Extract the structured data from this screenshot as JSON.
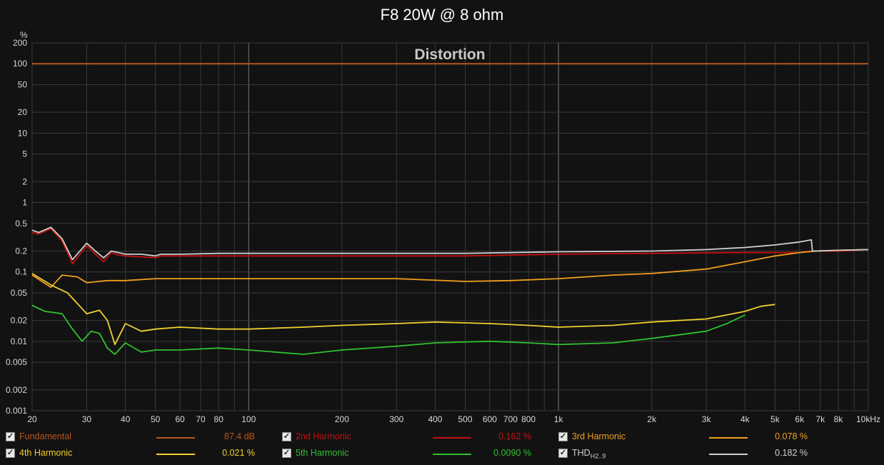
{
  "page_title": "F8 20W @ 8 ohm",
  "colors": {
    "background": "#121212",
    "grid": "#3a3a3a",
    "grid_major": "#7a7a7a",
    "axis_text": "#d8d8d8",
    "fundamental": "#b8561a",
    "h2": "#c81010",
    "h3": "#f0a020",
    "h4": "#f0d030",
    "h5": "#30c030",
    "thd": "#d0d0d0"
  },
  "chart_data": {
    "type": "line",
    "title": "Distortion",
    "ylabel": "%",
    "xscale": "log",
    "yscale": "log",
    "xlim": [
      20,
      10000
    ],
    "ylim": [
      0.001,
      200
    ],
    "x_ticks": [
      "20",
      "30",
      "40",
      "50",
      "60",
      "70",
      "80",
      "100",
      "200",
      "300",
      "400",
      "500",
      "600",
      "700",
      "800",
      "1k",
      "2k",
      "3k",
      "4k",
      "5k",
      "6k",
      "7k",
      "8k",
      "10kHz"
    ],
    "y_ticks": [
      "200",
      "100",
      "50",
      "20",
      "10",
      "5",
      "2",
      "1",
      "0.5",
      "0.2",
      "0.1",
      "0.05",
      "0.02",
      "0.01",
      "0.005",
      "0.002",
      "0.001"
    ],
    "series": [
      {
        "name": "Fundamental",
        "color": "#b8561a",
        "x": [
          20,
          10000
        ],
        "y": [
          100,
          100
        ]
      },
      {
        "name": "2nd Harmonic",
        "color": "#c81010",
        "x": [
          20,
          21,
          23,
          25,
          27,
          30,
          32,
          34,
          36,
          38,
          40,
          45,
          50,
          52,
          60,
          80,
          100,
          200,
          500,
          1000,
          2000,
          4000,
          6000,
          6500,
          8000,
          10000
        ],
        "y": [
          0.37,
          0.35,
          0.42,
          0.28,
          0.13,
          0.24,
          0.18,
          0.14,
          0.19,
          0.175,
          0.17,
          0.165,
          0.16,
          0.17,
          0.17,
          0.17,
          0.17,
          0.17,
          0.17,
          0.18,
          0.185,
          0.19,
          0.19,
          0.2,
          0.2,
          0.21
        ]
      },
      {
        "name": "3rd Harmonic",
        "color": "#f0a020",
        "x": [
          20,
          23,
          25,
          28,
          30,
          35,
          40,
          50,
          80,
          100,
          200,
          300,
          500,
          700,
          1000,
          1500,
          2000,
          3000,
          4000,
          5000,
          6000,
          6800,
          8000,
          10000
        ],
        "y": [
          0.09,
          0.06,
          0.09,
          0.085,
          0.07,
          0.075,
          0.075,
          0.08,
          0.08,
          0.08,
          0.08,
          0.08,
          0.073,
          0.075,
          0.08,
          0.09,
          0.095,
          0.11,
          0.14,
          0.17,
          0.19,
          0.2,
          0.205,
          0.21
        ]
      },
      {
        "name": "4th Harmonic",
        "color": "#f0d030",
        "x": [
          20,
          23,
          26,
          28,
          30,
          33,
          35,
          37,
          40,
          45,
          50,
          60,
          80,
          100,
          150,
          200,
          300,
          400,
          600,
          800,
          1000,
          1500,
          2000,
          3000,
          4000,
          4500,
          5000
        ],
        "y": [
          0.095,
          0.065,
          0.05,
          0.035,
          0.025,
          0.028,
          0.02,
          0.009,
          0.018,
          0.014,
          0.015,
          0.016,
          0.015,
          0.015,
          0.016,
          0.017,
          0.018,
          0.019,
          0.018,
          0.017,
          0.016,
          0.017,
          0.019,
          0.021,
          0.027,
          0.032,
          0.034
        ]
      },
      {
        "name": "5th Harmonic",
        "color": "#30c030",
        "x": [
          20,
          22,
          25,
          27,
          29,
          31,
          33,
          35,
          37,
          40,
          45,
          50,
          60,
          80,
          100,
          150,
          200,
          300,
          400,
          600,
          800,
          1000,
          1500,
          2000,
          3000,
          3500,
          4000
        ],
        "y": [
          0.033,
          0.027,
          0.025,
          0.015,
          0.01,
          0.014,
          0.013,
          0.008,
          0.0065,
          0.0095,
          0.007,
          0.0075,
          0.0075,
          0.008,
          0.0075,
          0.0065,
          0.0075,
          0.0085,
          0.0095,
          0.01,
          0.0095,
          0.009,
          0.0095,
          0.011,
          0.014,
          0.018,
          0.024
        ]
      },
      {
        "name": "THD H2..9",
        "color": "#d0d0d0",
        "x": [
          20,
          21,
          23,
          25,
          27,
          30,
          32,
          34,
          36,
          38,
          40,
          45,
          50,
          52,
          60,
          80,
          100,
          200,
          500,
          1000,
          2000,
          3000,
          4000,
          5000,
          6000,
          6550,
          6600,
          8000,
          10000
        ],
        "y": [
          0.4,
          0.37,
          0.44,
          0.3,
          0.15,
          0.26,
          0.2,
          0.16,
          0.2,
          0.19,
          0.18,
          0.18,
          0.17,
          0.18,
          0.18,
          0.185,
          0.185,
          0.185,
          0.185,
          0.195,
          0.2,
          0.21,
          0.225,
          0.245,
          0.27,
          0.29,
          0.2,
          0.205,
          0.21
        ]
      }
    ]
  },
  "legend": {
    "items": [
      {
        "label": "Fundamental",
        "value": "87.4 dB",
        "color": "#b8561a",
        "label_color": "#b8561a",
        "value_color": "#b8561a",
        "checked": "✓"
      },
      {
        "label": "2nd Harmonic",
        "value": "0.162 %",
        "color": "#c81010",
        "label_color": "#c81010",
        "value_color": "#c81010",
        "checked": "✓"
      },
      {
        "label": "3rd Harmonic",
        "value": "0.078 %",
        "color": "#f0a020",
        "label_color": "#f0a020",
        "value_color": "#f0a020",
        "checked": "✓"
      },
      {
        "label": "4th Harmonic",
        "value": "0.021 %",
        "color": "#f0d030",
        "label_color": "#f0d030",
        "value_color": "#f0d030",
        "checked": "✓"
      },
      {
        "label": "5th Harmonic",
        "value": "0.0090 %",
        "color": "#30c030",
        "label_color": "#30c030",
        "value_color": "#30c030",
        "checked": "✓"
      },
      {
        "label": "THD",
        "sub": "H2..9",
        "value": "0.182 %",
        "color": "#d0d0d0",
        "label_color": "#d0d0d0",
        "value_color": "#d0d0d0",
        "checked": "✓"
      }
    ]
  }
}
